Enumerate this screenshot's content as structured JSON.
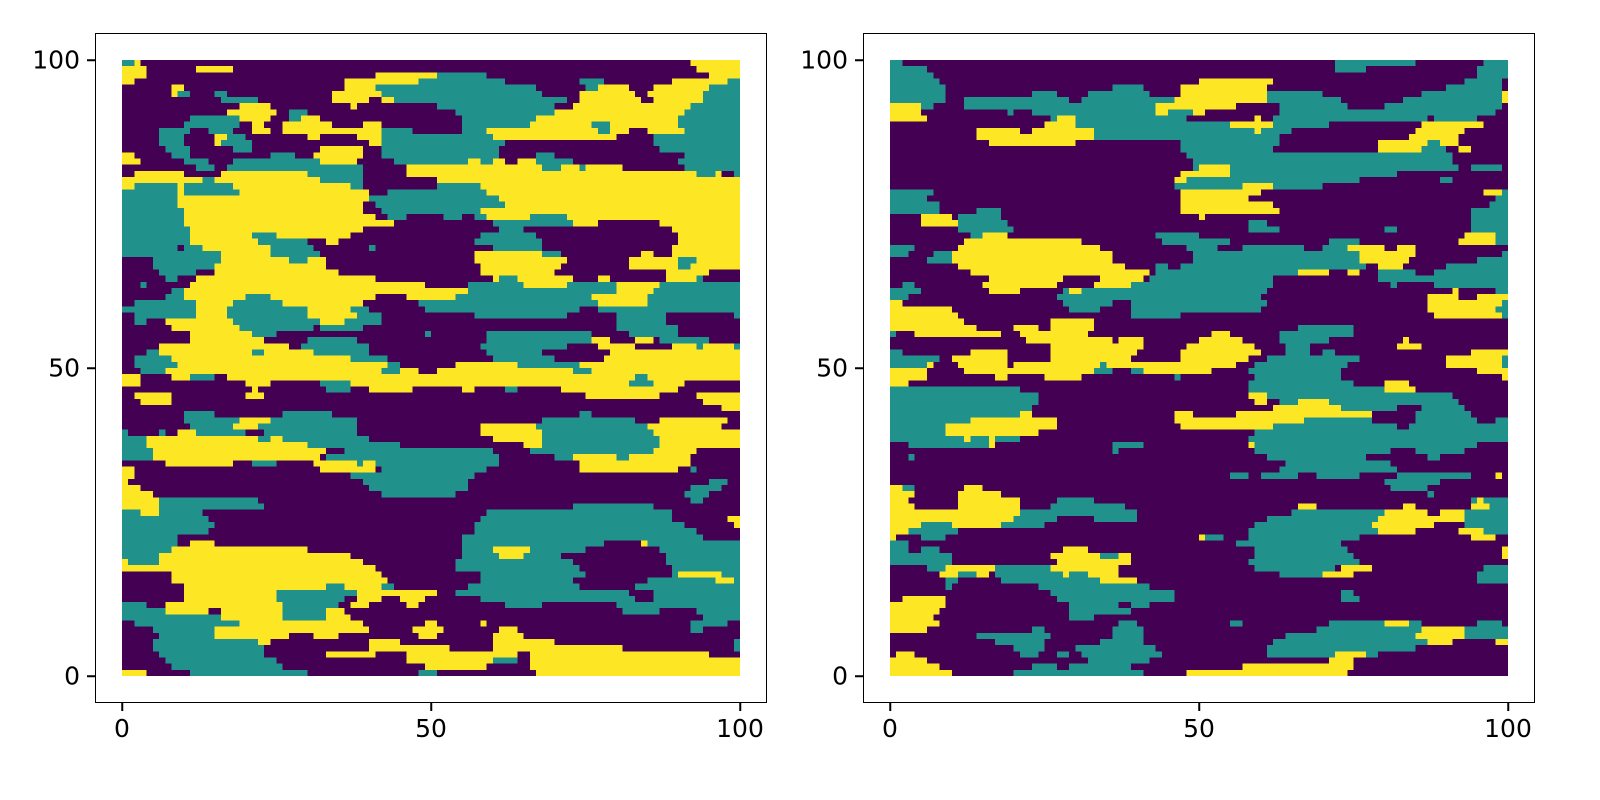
{
  "figure": {
    "background": "#ffffff",
    "title": "",
    "panels": 2
  },
  "chart_data": [
    {
      "type": "heatmap",
      "panel": "left",
      "title": "",
      "xlabel": "",
      "ylabel": "",
      "xlim": [
        0,
        100
      ],
      "ylim": [
        0,
        100
      ],
      "xticks": [
        0,
        50,
        100
      ],
      "yticks": [
        0,
        50,
        100
      ],
      "grid_size": [
        100,
        100
      ],
      "legend": "none",
      "grid": "off",
      "categories": [
        "category-1",
        "category-2",
        "category-3"
      ],
      "palette": {
        "name": "viridis-3",
        "colors": [
          "#440154",
          "#21918c",
          "#fde725"
        ]
      },
      "proportions": [
        0.4,
        0.29,
        0.31
      ],
      "texture": {
        "seed": 11,
        "corr_x": 16,
        "corr_y": 4.6,
        "shear": 0.04,
        "detail": 0.2,
        "description": "anisotropic categorical random field, horizontally elongated patches"
      }
    },
    {
      "type": "heatmap",
      "panel": "right",
      "title": "",
      "xlabel": "",
      "ylabel": "",
      "xlim": [
        0,
        100
      ],
      "ylim": [
        0,
        100
      ],
      "xticks": [
        0,
        50,
        100
      ],
      "yticks": [
        0,
        50,
        100
      ],
      "grid_size": [
        100,
        100
      ],
      "legend": "none",
      "grid": "off",
      "categories": [
        "category-1",
        "category-2",
        "category-3"
      ],
      "palette": {
        "name": "viridis-3",
        "colors": [
          "#440154",
          "#21918c",
          "#fde725"
        ]
      },
      "proportions": [
        0.45,
        0.33,
        0.22
      ],
      "texture": {
        "seed": 37,
        "corr_x": 17,
        "corr_y": 4.8,
        "shear": -0.07,
        "detail": 0.2,
        "description": "anisotropic categorical random field, horizontally elongated patches"
      }
    }
  ]
}
